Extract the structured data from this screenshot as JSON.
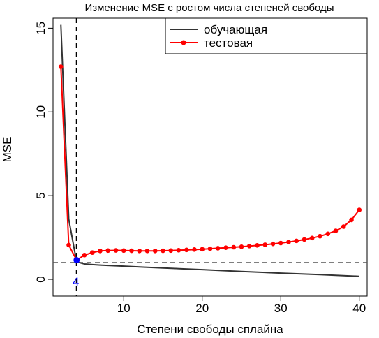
{
  "chart_data": {
    "type": "line",
    "title": "Изменение MSE с ростом числа степеней свободы",
    "xlabel": "Степени свободы сплайна",
    "ylabel": "MSE",
    "xlim": [
      1,
      41
    ],
    "ylim": [
      -1,
      15.6
    ],
    "x_ticks": [
      10,
      20,
      30,
      40
    ],
    "y_ticks": [
      0,
      5,
      10,
      15
    ],
    "legend": {
      "position": "top-right",
      "entries": [
        "обучающая",
        "тестовая"
      ]
    },
    "series": [
      {
        "name": "обучающая",
        "color": "#333333",
        "marker": "none",
        "points": [
          [
            2,
            15.2
          ],
          [
            3,
            3.6
          ],
          [
            4,
            1.05
          ],
          [
            5,
            0.92
          ],
          [
            6,
            0.88
          ],
          [
            7,
            0.85
          ],
          [
            8,
            0.83
          ],
          [
            9,
            0.81
          ],
          [
            10,
            0.79
          ],
          [
            12,
            0.74
          ],
          [
            15,
            0.68
          ],
          [
            20,
            0.58
          ],
          [
            25,
            0.47
          ],
          [
            30,
            0.37
          ],
          [
            35,
            0.28
          ],
          [
            40,
            0.18
          ]
        ]
      },
      {
        "name": "тестовая",
        "color": "#ff0000",
        "marker": "circle",
        "points": [
          [
            2,
            12.7
          ],
          [
            3,
            2.05
          ],
          [
            4,
            1.15
          ],
          [
            5,
            1.45
          ],
          [
            6,
            1.6
          ],
          [
            7,
            1.7
          ],
          [
            8,
            1.72
          ],
          [
            9,
            1.73
          ],
          [
            10,
            1.72
          ],
          [
            11,
            1.71
          ],
          [
            12,
            1.7
          ],
          [
            13,
            1.7
          ],
          [
            14,
            1.7
          ],
          [
            15,
            1.71
          ],
          [
            16,
            1.72
          ],
          [
            17,
            1.74
          ],
          [
            18,
            1.76
          ],
          [
            19,
            1.78
          ],
          [
            20,
            1.8
          ],
          [
            21,
            1.83
          ],
          [
            22,
            1.86
          ],
          [
            23,
            1.89
          ],
          [
            24,
            1.92
          ],
          [
            25,
            1.95
          ],
          [
            26,
            1.99
          ],
          [
            27,
            2.03
          ],
          [
            28,
            2.07
          ],
          [
            29,
            2.12
          ],
          [
            30,
            2.17
          ],
          [
            31,
            2.23
          ],
          [
            32,
            2.3
          ],
          [
            33,
            2.38
          ],
          [
            34,
            2.47
          ],
          [
            35,
            2.58
          ],
          [
            36,
            2.72
          ],
          [
            37,
            2.9
          ],
          [
            38,
            3.15
          ],
          [
            39,
            3.55
          ],
          [
            40,
            4.15
          ]
        ]
      }
    ],
    "vline": {
      "x": 4,
      "label": "4",
      "label_color": "#0000ff"
    },
    "hline": {
      "y": 1.0
    },
    "highlight_point": {
      "x": 4,
      "y": 1.15,
      "color": "#0000ff"
    }
  }
}
